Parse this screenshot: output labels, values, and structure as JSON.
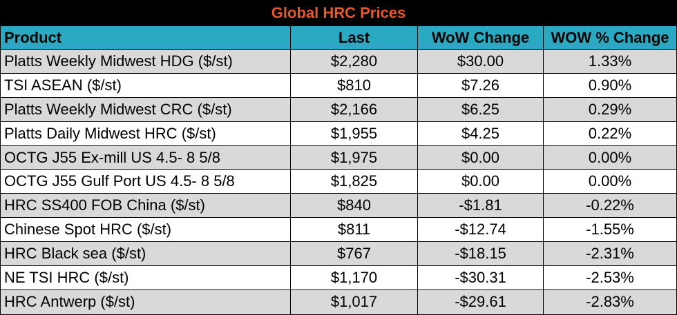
{
  "chart_data": {
    "type": "table",
    "title": "Global HRC Prices",
    "columns": [
      "Product",
      "Last",
      "WoW Change",
      "WOW % Change"
    ],
    "rows": [
      {
        "product": "Platts Weekly Midwest HDG ($/st)",
        "last": "$2,280",
        "wow": "$30.00",
        "pct": "1.33%"
      },
      {
        "product": "TSI ASEAN ($/st)",
        "last": "$810",
        "wow": "$7.26",
        "pct": "0.90%"
      },
      {
        "product": "Platts Weekly Midwest CRC ($/st)",
        "last": "$2,166",
        "wow": "$6.25",
        "pct": "0.29%"
      },
      {
        "product": "Platts Daily Midwest HRC ($/st)",
        "last": "$1,955",
        "wow": "$4.25",
        "pct": "0.22%"
      },
      {
        "product": "OCTG J55 Ex-mill US 4.5- 8 5/8",
        "last": "$1,975",
        "wow": "$0.00",
        "pct": "0.00%"
      },
      {
        "product": "OCTG J55 Gulf Port US 4.5- 8 5/8",
        "last": "$1,825",
        "wow": "$0.00",
        "pct": "0.00%"
      },
      {
        "product": "HRC SS400 FOB China ($/st)",
        "last": "$840",
        "wow": "-$1.81",
        "pct": "-0.22%"
      },
      {
        "product": "Chinese Spot HRC ($/st)",
        "last": "$811",
        "wow": "-$12.74",
        "pct": "-1.55%"
      },
      {
        "product": "HRC Black sea ($/st)",
        "last": "$767",
        "wow": "-$18.15",
        "pct": "-2.31%"
      },
      {
        "product": "NE TSI HRC ($/st)",
        "last": "$1,170",
        "wow": "-$30.31",
        "pct": "-2.53%"
      },
      {
        "product": "HRC Antwerp ($/st)",
        "last": "$1,017",
        "wow": "-$29.61",
        "pct": "-2.83%"
      }
    ]
  },
  "colors": {
    "title_bg": "#000000",
    "title_text": "#e8572a",
    "header_bg": "#2aa9c2",
    "shaded_row": "#d9d9d9",
    "white_row": "#ffffff"
  }
}
